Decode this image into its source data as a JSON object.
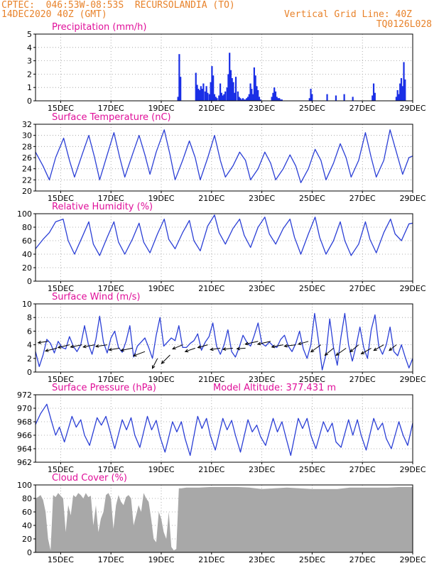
{
  "header": {
    "line1": "CPTEC:  046:53W-08:53S  RECURSOLANDIA (TO)",
    "line2": "14DEC2020 40Z (GMT)",
    "grid_note": "Vertical Grid Line: 40Z",
    "code": "TQ0126L028"
  },
  "colors": {
    "header": "#e8822a",
    "panel_title": "#e0109a",
    "series_line": "#2b3fd6",
    "precip_bar": "#1a2fe6",
    "cloud_fill": "#a8a8a8",
    "wind_arrow": "#000000"
  },
  "chart_data": [
    {
      "id": "precip",
      "type": "bar",
      "title": "Precipitation (mm/h)",
      "xlabel": "",
      "ylabel": "",
      "ylim": [
        0,
        5
      ],
      "yticks": [
        "0",
        "1",
        "2",
        "3",
        "4",
        "5"
      ],
      "xticks": [
        "15DEC",
        "17DEC",
        "19DEC",
        "21DEC",
        "23DEC",
        "25DEC",
        "27DEC",
        "29DEC"
      ],
      "grid": true,
      "x_unit": "days since 14DEC 00Z",
      "x": [
        5.67,
        5.72,
        5.77,
        6.38,
        6.43,
        6.48,
        6.53,
        6.58,
        6.63,
        6.68,
        6.75,
        6.8,
        6.85,
        6.92,
        6.97,
        7.02,
        7.07,
        7.12,
        7.17,
        7.22,
        7.3,
        7.35,
        7.4,
        7.45,
        7.5,
        7.55,
        7.62,
        7.67,
        7.72,
        7.77,
        7.82,
        7.87,
        7.92,
        7.97,
        8.05,
        8.1,
        8.15,
        8.2,
        8.25,
        8.3,
        8.35,
        8.4,
        8.45,
        8.5,
        8.55,
        8.6,
        8.65,
        8.7,
        8.75,
        8.8,
        8.85,
        8.9,
        8.95,
        9.4,
        9.45,
        9.5,
        9.55,
        9.6,
        9.65,
        9.7,
        9.75,
        9.8,
        10.9,
        10.95,
        11.0,
        11.6,
        11.95,
        12.28,
        12.62,
        13.4,
        13.45,
        13.5,
        14.35,
        14.4,
        14.45,
        14.5,
        14.55,
        14.6,
        14.65,
        14.7
      ],
      "values": [
        0.3,
        3.5,
        1.8,
        2.1,
        1.2,
        0.9,
        0.8,
        1.1,
        0.9,
        1.3,
        0.7,
        1.1,
        0.6,
        0.5,
        1.4,
        2.6,
        1.9,
        0.5,
        0.3,
        0.2,
        0.4,
        1.3,
        0.6,
        0.4,
        0.5,
        0.7,
        1.0,
        2.0,
        3.6,
        2.3,
        1.7,
        1.4,
        0.6,
        1.8,
        0.7,
        0.3,
        0.2,
        0.1,
        0.2,
        0.1,
        0.1,
        0.2,
        0.3,
        0.5,
        1.3,
        0.9,
        0.5,
        2.5,
        1.9,
        1.1,
        0.8,
        0.3,
        0.1,
        0.3,
        0.6,
        1.0,
        0.7,
        0.3,
        0.2,
        0.2,
        0.1,
        0.1,
        0.2,
        0.9,
        0.5,
        0.5,
        0.4,
        0.5,
        0.3,
        0.4,
        1.3,
        0.6,
        0.3,
        0.8,
        0.5,
        1.3,
        1.7,
        1.1,
        2.9,
        1.6
      ]
    },
    {
      "id": "temp",
      "type": "line",
      "title": "Surface Temperature (nC)",
      "xlabel": "",
      "ylabel": "",
      "ylim": [
        20,
        32
      ],
      "yticks": [
        "20",
        "22",
        "24",
        "26",
        "28",
        "30",
        "32"
      ],
      "xticks": [
        "15DEC",
        "17DEC",
        "19DEC",
        "21DEC",
        "23DEC",
        "25DEC",
        "27DEC",
        "29DEC"
      ],
      "grid": true,
      "x_unit": "days since 14DEC 00Z",
      "x": [
        0.0,
        0.3,
        0.55,
        0.8,
        1.12,
        1.35,
        1.55,
        1.85,
        2.12,
        2.35,
        2.55,
        2.85,
        3.12,
        3.35,
        3.55,
        3.85,
        4.12,
        4.35,
        4.55,
        4.8,
        5.12,
        5.35,
        5.55,
        5.85,
        6.12,
        6.35,
        6.55,
        6.85,
        7.12,
        7.35,
        7.55,
        7.85,
        8.12,
        8.35,
        8.55,
        8.85,
        9.12,
        9.35,
        9.55,
        9.85,
        10.12,
        10.35,
        10.55,
        10.85,
        11.12,
        11.35,
        11.55,
        11.85,
        12.12,
        12.35,
        12.55,
        12.85,
        13.12,
        13.35,
        13.55,
        13.85,
        14.1,
        14.35,
        14.6,
        14.85,
        15.0
      ],
      "values": [
        27.0,
        24.5,
        22.0,
        26.0,
        29.5,
        25.5,
        22.5,
        26.5,
        30.0,
        26.0,
        22.0,
        26.5,
        30.5,
        26.0,
        22.5,
        26.5,
        30.0,
        26.5,
        23.0,
        27.0,
        31.0,
        26.5,
        22.0,
        25.5,
        29.0,
        26.0,
        22.0,
        26.0,
        30.0,
        25.5,
        22.5,
        24.5,
        27.0,
        25.5,
        22.0,
        24.0,
        27.0,
        25.0,
        22.0,
        24.0,
        26.5,
        24.5,
        21.5,
        24.0,
        27.5,
        25.5,
        22.0,
        25.0,
        28.5,
        26.0,
        22.5,
        25.5,
        30.5,
        26.0,
        22.5,
        25.5,
        31.0,
        27.0,
        23.0,
        26.0,
        26.3
      ]
    },
    {
      "id": "rh",
      "type": "line",
      "title": "Relative Humidity (%)",
      "xlabel": "",
      "ylabel": "",
      "ylim": [
        0,
        100
      ],
      "yticks": [
        "0",
        "20",
        "40",
        "60",
        "80",
        "100"
      ],
      "xticks": [
        "15DEC",
        "17DEC",
        "19DEC",
        "21DEC",
        "23DEC",
        "25DEC",
        "27DEC",
        "29DEC"
      ],
      "grid": true,
      "x_unit": "days since 14DEC 00Z",
      "x": [
        0.0,
        0.3,
        0.55,
        0.8,
        1.1,
        1.3,
        1.55,
        1.85,
        2.12,
        2.3,
        2.55,
        2.85,
        3.12,
        3.3,
        3.55,
        3.85,
        4.12,
        4.3,
        4.55,
        4.85,
        5.12,
        5.3,
        5.55,
        5.85,
        6.12,
        6.3,
        6.55,
        6.85,
        7.12,
        7.3,
        7.55,
        7.85,
        8.12,
        8.3,
        8.55,
        8.85,
        9.12,
        9.3,
        9.55,
        9.85,
        10.12,
        10.3,
        10.55,
        10.85,
        11.12,
        11.3,
        11.55,
        11.85,
        12.12,
        12.3,
        12.55,
        12.85,
        13.12,
        13.3,
        13.55,
        13.85,
        14.12,
        14.3,
        14.55,
        14.85,
        15.0
      ],
      "values": [
        48,
        62,
        72,
        88,
        92,
        60,
        40,
        65,
        88,
        55,
        38,
        65,
        88,
        58,
        40,
        62,
        86,
        58,
        42,
        70,
        92,
        62,
        48,
        72,
        90,
        60,
        45,
        82,
        98,
        72,
        55,
        78,
        92,
        68,
        50,
        80,
        95,
        70,
        55,
        78,
        92,
        65,
        40,
        70,
        95,
        65,
        40,
        60,
        88,
        60,
        38,
        55,
        88,
        62,
        42,
        72,
        92,
        70,
        60,
        85,
        86
      ]
    },
    {
      "id": "wind",
      "type": "line",
      "title": "Surface Wind (m/s)",
      "xlabel": "",
      "ylabel": "",
      "ylim": [
        0,
        10
      ],
      "yticks": [
        "0",
        "2",
        "4",
        "6",
        "8",
        "10"
      ],
      "xticks": [
        "15DEC",
        "17DEC",
        "19DEC",
        "21DEC",
        "23DEC",
        "25DEC",
        "27DEC",
        "29DEC"
      ],
      "grid": true,
      "x_unit": "days since 14DEC 00Z",
      "x": [
        0.0,
        0.15,
        0.3,
        0.45,
        0.6,
        0.75,
        0.9,
        1.05,
        1.2,
        1.35,
        1.5,
        1.65,
        1.8,
        1.95,
        2.1,
        2.25,
        2.4,
        2.55,
        2.7,
        2.85,
        3.0,
        3.15,
        3.3,
        3.45,
        3.6,
        3.75,
        3.9,
        4.05,
        4.2,
        4.35,
        4.5,
        4.65,
        4.8,
        4.95,
        5.1,
        5.25,
        5.4,
        5.55,
        5.7,
        5.85,
        6.0,
        6.15,
        6.3,
        6.45,
        6.6,
        6.75,
        6.9,
        7.05,
        7.2,
        7.35,
        7.5,
        7.65,
        7.8,
        7.95,
        8.1,
        8.25,
        8.4,
        8.55,
        8.7,
        8.85,
        9.0,
        9.15,
        9.3,
        9.45,
        9.6,
        9.75,
        9.9,
        10.05,
        10.2,
        10.35,
        10.5,
        10.65,
        10.8,
        10.95,
        11.1,
        11.25,
        11.4,
        11.55,
        11.7,
        11.85,
        12.0,
        12.15,
        12.3,
        12.45,
        12.6,
        12.75,
        12.9,
        13.05,
        13.2,
        13.35,
        13.5,
        13.65,
        13.8,
        13.95,
        14.1,
        14.25,
        14.4,
        14.55,
        14.7,
        14.85,
        15.0
      ],
      "values": [
        3.0,
        0.8,
        2.5,
        4.8,
        4.2,
        2.8,
        4.5,
        3.6,
        3.4,
        5.2,
        3.8,
        3.0,
        4.0,
        6.8,
        4.1,
        2.6,
        4.8,
        8.2,
        4.4,
        2.8,
        5.0,
        6.0,
        3.6,
        2.9,
        4.5,
        6.8,
        2.2,
        3.8,
        4.4,
        5.0,
        3.6,
        2.0,
        5.4,
        8.0,
        3.8,
        4.4,
        5.0,
        4.6,
        6.8,
        3.6,
        3.6,
        4.2,
        4.6,
        5.6,
        3.2,
        4.4,
        5.2,
        7.2,
        3.8,
        2.6,
        4.0,
        6.2,
        3.0,
        2.2,
        3.6,
        5.4,
        4.4,
        3.8,
        5.4,
        7.2,
        4.2,
        3.8,
        4.4,
        3.8,
        3.6,
        4.8,
        5.4,
        3.8,
        3.0,
        4.2,
        6.0,
        3.4,
        2.0,
        4.0,
        8.6,
        4.6,
        0.3,
        2.6,
        7.8,
        3.6,
        1.0,
        5.2,
        8.6,
        4.0,
        1.6,
        3.8,
        6.6,
        3.6,
        2.0,
        6.2,
        8.4,
        3.8,
        2.6,
        4.0,
        6.6,
        3.0,
        2.4,
        4.0,
        2.2,
        0.6,
        2.0
      ],
      "vectors": {
        "x": [
          0.5,
          0.85,
          1.35,
          1.85,
          2.35,
          2.85,
          3.35,
          3.85,
          4.35,
          4.85,
          5.35,
          5.85,
          6.35,
          6.85,
          7.35,
          7.85,
          8.35,
          8.85,
          9.35,
          9.85,
          10.35,
          10.85,
          11.35,
          11.85,
          12.35,
          12.85,
          13.35,
          13.85,
          14.35
        ],
        "level": [
          4.5,
          3.5,
          4.0,
          4.0,
          4.0,
          4.0,
          3.5,
          3.5,
          3.0,
          2.0,
          2.5,
          4.0,
          3.5,
          4.0,
          3.5,
          3.5,
          3.5,
          4.5,
          4.5,
          4.0,
          4.0,
          4.5,
          4.0,
          3.5,
          3.5,
          4.0,
          3.5,
          4.0,
          4.0
        ],
        "u": [
          3.5,
          4.0,
          4.0,
          4.0,
          4.0,
          4.0,
          3.8,
          4.0,
          4.0,
          1.8,
          3.0,
          3.5,
          3.5,
          3.5,
          3.5,
          3.5,
          3.0,
          4.5,
          4.5,
          4.0,
          4.0,
          3.5,
          3.5,
          3.0,
          3.5,
          3.0,
          3.5,
          3.5,
          2.5
        ],
        "v": [
          0.5,
          1.0,
          1.0,
          0.8,
          0.8,
          0.6,
          0.6,
          0.8,
          1.5,
          3.5,
          3.0,
          1.5,
          1.2,
          1.0,
          0.5,
          0.4,
          0.2,
          1.0,
          1.0,
          0.8,
          0.5,
          1.0,
          2.5,
          2.5,
          2.5,
          2.5,
          2.0,
          2.0,
          2.0
        ]
      }
    },
    {
      "id": "pressure",
      "type": "line",
      "title": "Surface Pressure (hPa)",
      "annotation": "Model Altitude: 377.431  m",
      "xlabel": "",
      "ylabel": "",
      "ylim": [
        962,
        972
      ],
      "yticks": [
        "962",
        "964",
        "966",
        "968",
        "970",
        "972"
      ],
      "xticks": [
        "15DEC",
        "17DEC",
        "19DEC",
        "21DEC",
        "23DEC",
        "25DEC",
        "27DEC",
        "29DEC"
      ],
      "grid": true,
      "x_unit": "days since 14DEC 00Z",
      "x": [
        0.0,
        0.2,
        0.45,
        0.62,
        0.8,
        0.95,
        1.15,
        1.45,
        1.62,
        1.8,
        1.95,
        2.15,
        2.45,
        2.62,
        2.8,
        2.95,
        3.15,
        3.45,
        3.62,
        3.8,
        3.95,
        4.15,
        4.45,
        4.62,
        4.8,
        4.95,
        5.15,
        5.45,
        5.62,
        5.8,
        5.95,
        6.15,
        6.45,
        6.62,
        6.8,
        6.95,
        7.15,
        7.45,
        7.62,
        7.8,
        7.95,
        8.15,
        8.45,
        8.62,
        8.8,
        8.95,
        9.15,
        9.45,
        9.62,
        9.8,
        9.95,
        10.15,
        10.45,
        10.62,
        10.8,
        10.95,
        11.15,
        11.45,
        11.62,
        11.8,
        11.95,
        12.15,
        12.45,
        12.62,
        12.8,
        12.95,
        13.15,
        13.45,
        13.62,
        13.8,
        13.95,
        14.15,
        14.45,
        14.62,
        14.8,
        15.0
      ],
      "values": [
        967.6,
        969.2,
        970.6,
        968.3,
        966.0,
        967.2,
        965.0,
        968.8,
        967.2,
        968.3,
        966.0,
        964.5,
        968.6,
        967.5,
        968.8,
        966.8,
        964.0,
        968.3,
        966.8,
        968.6,
        966.0,
        964.2,
        968.8,
        966.8,
        968.2,
        965.8,
        963.5,
        968.0,
        966.5,
        968.0,
        965.5,
        963.0,
        968.8,
        967.0,
        968.5,
        966.0,
        963.8,
        968.5,
        966.8,
        968.2,
        966.0,
        963.5,
        968.3,
        966.5,
        967.5,
        965.8,
        964.5,
        968.5,
        966.5,
        968.0,
        965.8,
        963.0,
        968.5,
        967.0,
        968.5,
        966.0,
        964.0,
        968.0,
        966.5,
        967.8,
        965.0,
        964.2,
        968.3,
        966.0,
        968.3,
        966.0,
        963.8,
        968.5,
        966.8,
        967.8,
        965.5,
        964.0,
        968.0,
        966.0,
        964.5,
        967.8
      ]
    },
    {
      "id": "cloud",
      "type": "area",
      "title": "Cloud Cover (%)",
      "xlabel": "",
      "ylabel": "",
      "ylim": [
        0,
        100
      ],
      "yticks": [
        "0",
        "20",
        "40",
        "60",
        "80",
        "100"
      ],
      "xticks": [
        "15DEC",
        "17DEC",
        "19DEC",
        "21DEC",
        "23DEC",
        "25DEC",
        "27DEC",
        "29DEC"
      ],
      "grid": true,
      "x_unit": "days since 14DEC 00Z",
      "x": [
        0.0,
        0.1,
        0.2,
        0.3,
        0.4,
        0.5,
        0.6,
        0.7,
        0.8,
        0.9,
        1.0,
        1.1,
        1.2,
        1.3,
        1.4,
        1.5,
        1.6,
        1.7,
        1.8,
        1.9,
        2.0,
        2.1,
        2.2,
        2.3,
        2.4,
        2.5,
        2.6,
        2.7,
        2.8,
        2.9,
        3.0,
        3.1,
        3.2,
        3.3,
        3.4,
        3.5,
        3.6,
        3.7,
        3.8,
        3.9,
        4.0,
        4.1,
        4.2,
        4.3,
        4.4,
        4.5,
        4.6,
        4.7,
        4.8,
        4.9,
        5.0,
        5.1,
        5.2,
        5.3,
        5.4,
        5.5,
        5.6,
        5.7,
        5.8,
        6.0,
        6.5,
        7.0,
        7.5,
        8.0,
        8.5,
        9.0,
        9.5,
        10.0,
        10.5,
        11.0,
        11.5,
        12.0,
        12.5,
        13.0,
        13.5,
        14.0,
        14.5,
        15.0
      ],
      "values": [
        80,
        82,
        85,
        78,
        60,
        20,
        3,
        85,
        82,
        88,
        84,
        80,
        30,
        70,
        55,
        85,
        82,
        88,
        85,
        80,
        88,
        82,
        84,
        40,
        70,
        30,
        50,
        60,
        85,
        88,
        80,
        35,
        70,
        85,
        75,
        70,
        82,
        85,
        80,
        40,
        55,
        70,
        60,
        88,
        80,
        75,
        50,
        20,
        15,
        60,
        50,
        30,
        20,
        60,
        8,
        3,
        5,
        95,
        95,
        96,
        96,
        97,
        97,
        97,
        96,
        94,
        95,
        96,
        95,
        94,
        94,
        94,
        96,
        96,
        96,
        96,
        97,
        97
      ]
    }
  ]
}
